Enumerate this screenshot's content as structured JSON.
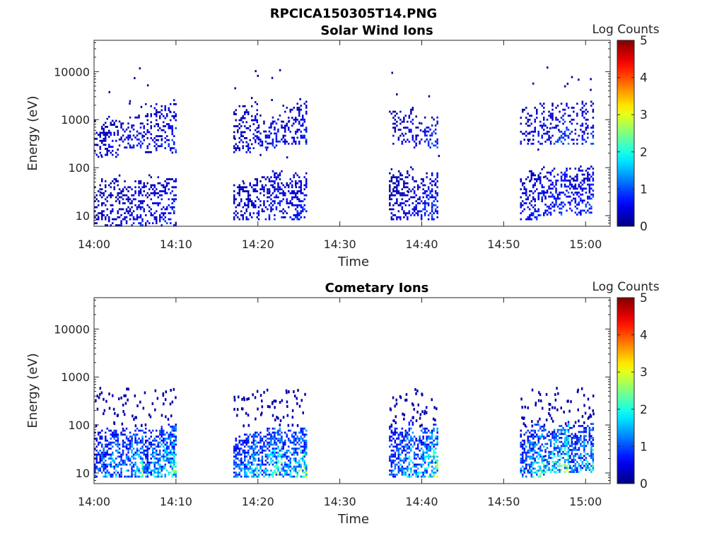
{
  "figure": {
    "title": "RPCICA150305T14.PNG"
  },
  "chart_data": [
    {
      "type": "heatmap",
      "title": "Solar Wind Ions",
      "xlabel": "Time",
      "ylabel": "Energy (eV)",
      "x_ticks": [
        "14:00",
        "14:10",
        "14:20",
        "14:30",
        "14:40",
        "14:50",
        "15:00"
      ],
      "x_range": [
        "14:00",
        "15:03"
      ],
      "y_scale": "log",
      "y_ticks": [
        10,
        100,
        1000,
        10000
      ],
      "y_range": [
        6,
        45000
      ],
      "colorbar": {
        "label": "Log Counts",
        "range": [
          0,
          5
        ],
        "ticks": [
          0,
          1,
          2,
          3,
          4,
          5
        ],
        "colormap": "jet"
      },
      "bursts": [
        {
          "start": "14:00",
          "end": "14:03",
          "low_band": [
            6,
            60
          ],
          "high_band": [
            160,
            1200
          ],
          "level": 0.5
        },
        {
          "start": "14:03",
          "end": "14:06",
          "low_band": [
            6,
            60
          ],
          "high_band": [
            250,
            1200
          ],
          "level": 0.6
        },
        {
          "start": "14:06",
          "end": "14:10",
          "low_band": [
            6,
            70
          ],
          "high_band": [
            200,
            2500
          ],
          "level": 0.7
        },
        {
          "start": "14:17",
          "end": "14:20",
          "low_band": [
            8,
            60
          ],
          "high_band": [
            200,
            2500
          ],
          "level": 0.6
        },
        {
          "start": "14:20",
          "end": "14:23",
          "low_band": [
            8,
            90
          ],
          "high_band": [
            250,
            1200
          ],
          "level": 0.7
        },
        {
          "start": "14:23",
          "end": "14:26",
          "low_band": [
            8,
            80
          ],
          "high_band": [
            300,
            2500
          ],
          "level": 0.7
        },
        {
          "start": "14:36",
          "end": "14:39",
          "low_band": [
            8,
            110
          ],
          "high_band": [
            300,
            2000
          ],
          "level": 0.5
        },
        {
          "start": "14:39",
          "end": "14:42",
          "low_band": [
            8,
            90
          ],
          "high_band": [
            250,
            1200
          ],
          "level": 0.8
        },
        {
          "start": "14:52",
          "end": "14:55",
          "low_band": [
            8,
            100
          ],
          "high_band": [
            300,
            2200
          ],
          "level": 0.7
        },
        {
          "start": "14:55",
          "end": "14:58",
          "low_band": [
            10,
            110
          ],
          "high_band": [
            300,
            2500
          ],
          "level": 0.9
        },
        {
          "start": "14:58",
          "end": "15:01",
          "low_band": [
            10,
            110
          ],
          "high_band": [
            300,
            2500
          ],
          "level": 0.8
        }
      ]
    },
    {
      "type": "heatmap",
      "title": "Cometary Ions",
      "xlabel": "Time",
      "ylabel": "Energy (eV)",
      "x_ticks": [
        "14:00",
        "14:10",
        "14:20",
        "14:30",
        "14:40",
        "14:50",
        "15:00"
      ],
      "x_range": [
        "14:00",
        "15:03"
      ],
      "y_scale": "log",
      "y_ticks": [
        10,
        100,
        1000,
        10000
      ],
      "y_range": [
        6,
        45000
      ],
      "colorbar": {
        "label": "Log Counts",
        "range": [
          0,
          5
        ],
        "ticks": [
          0,
          1,
          2,
          3,
          4,
          5
        ],
        "colormap": "jet"
      },
      "bursts": [
        {
          "start": "14:00",
          "end": "14:03",
          "band": [
            8,
            90
          ],
          "level": 1.4
        },
        {
          "start": "14:03",
          "end": "14:06",
          "band": [
            8,
            90
          ],
          "level": 1.6
        },
        {
          "start": "14:06",
          "end": "14:10",
          "band": [
            8,
            100
          ],
          "level": 1.7
        },
        {
          "start": "14:17",
          "end": "14:20",
          "band": [
            8,
            80
          ],
          "level": 1.5
        },
        {
          "start": "14:20",
          "end": "14:23",
          "band": [
            8,
            90
          ],
          "level": 1.8
        },
        {
          "start": "14:23",
          "end": "14:26",
          "band": [
            8,
            90
          ],
          "level": 1.8
        },
        {
          "start": "14:36",
          "end": "14:39",
          "band": [
            8,
            120
          ],
          "level": 1.5
        },
        {
          "start": "14:39",
          "end": "14:42",
          "band": [
            8,
            100
          ],
          "level": 1.9
        },
        {
          "start": "14:52",
          "end": "14:55",
          "band": [
            8,
            110
          ],
          "level": 1.7
        },
        {
          "start": "14:55",
          "end": "14:58",
          "band": [
            10,
            120
          ],
          "level": 2.0
        },
        {
          "start": "14:58",
          "end": "15:01",
          "band": [
            10,
            110
          ],
          "level": 1.6
        }
      ]
    }
  ]
}
